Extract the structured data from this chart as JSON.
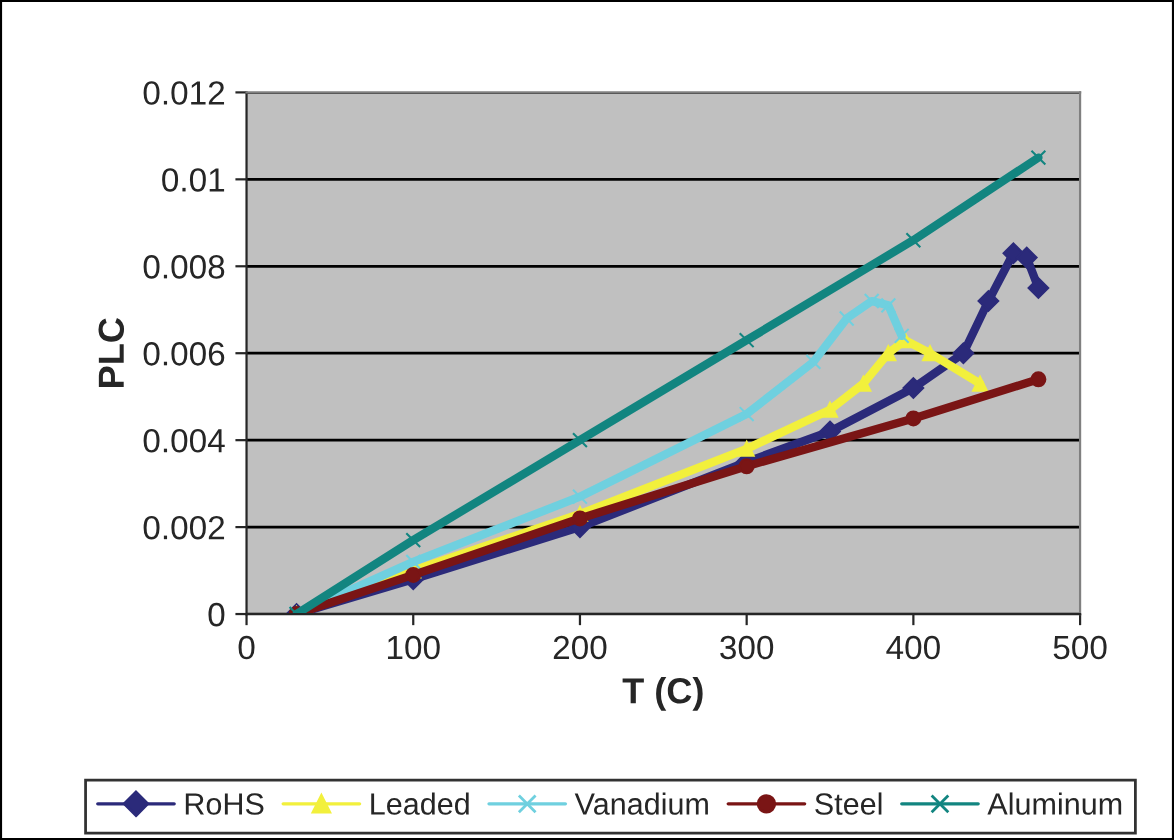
{
  "chart_data": {
    "type": "line",
    "xlabel": "T (C)",
    "ylabel": "PLC",
    "xlim": [
      0,
      500
    ],
    "xticks": [
      0,
      100,
      200,
      300,
      400,
      500
    ],
    "ylim": [
      0,
      0.012
    ],
    "yticks": [
      0,
      0.002,
      0.004,
      0.006,
      0.008,
      0.01,
      0.012
    ],
    "grid": "y",
    "legend": "bottom",
    "series": [
      {
        "name": "RoHS",
        "color": "#2b2a7a",
        "marker": "diamond",
        "x": [
          30,
          100,
          200,
          300,
          350,
          400,
          430,
          445,
          460,
          468,
          475
        ],
        "values": [
          0,
          0.0008,
          0.002,
          0.0035,
          0.0042,
          0.0052,
          0.006,
          0.0072,
          0.0083,
          0.0082,
          0.0075
        ]
      },
      {
        "name": "Leaded",
        "color": "#f2f03c",
        "marker": "triangle",
        "x": [
          30,
          100,
          200,
          300,
          350,
          370,
          385,
          395,
          410,
          440
        ],
        "values": [
          0,
          0.001,
          0.0023,
          0.0038,
          0.0047,
          0.0053,
          0.006,
          0.0063,
          0.006,
          0.0053
        ]
      },
      {
        "name": "Vanadium",
        "color": "#6fd0df",
        "marker": "cross",
        "x": [
          30,
          100,
          200,
          300,
          340,
          360,
          375,
          385,
          393
        ],
        "values": [
          0,
          0.0012,
          0.0027,
          0.0046,
          0.0058,
          0.0068,
          0.0072,
          0.0071,
          0.0064
        ]
      },
      {
        "name": "Steel",
        "color": "#7a1515",
        "marker": "circle",
        "x": [
          30,
          100,
          200,
          300,
          400,
          475
        ],
        "values": [
          0,
          0.0009,
          0.0022,
          0.0034,
          0.0045,
          0.0054
        ]
      },
      {
        "name": "Aluminum",
        "color": "#128580",
        "marker": "cross",
        "x": [
          30,
          100,
          200,
          300,
          400,
          475
        ],
        "values": [
          0,
          0.0017,
          0.004,
          0.0063,
          0.0086,
          0.0105
        ]
      }
    ]
  }
}
